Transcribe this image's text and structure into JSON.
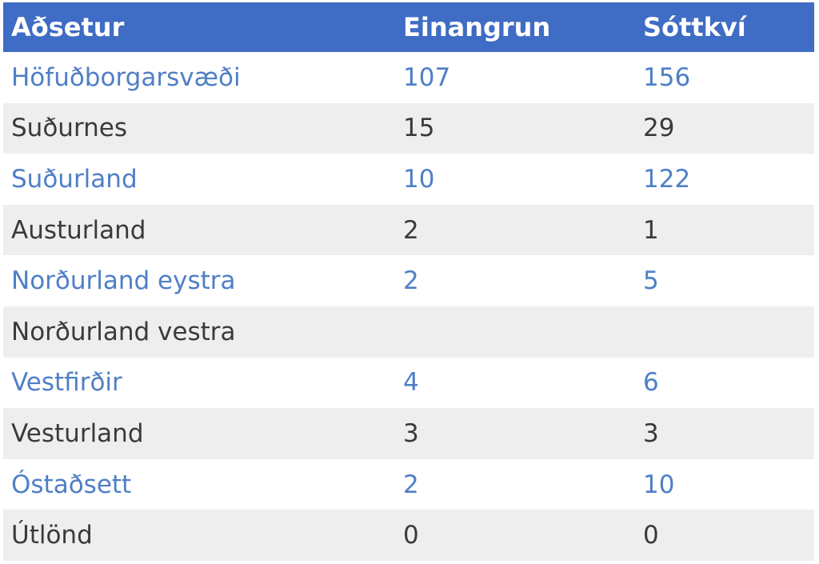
{
  "table": {
    "headers": [
      "Aðsetur",
      "Einangrun",
      "Sóttkví"
    ],
    "rows": [
      [
        "Höfuðborgarsvæði",
        "107",
        "156"
      ],
      [
        "Suðurnes",
        "15",
        "29"
      ],
      [
        "Suðurland",
        "10",
        "122"
      ],
      [
        "Austurland",
        "2",
        "1"
      ],
      [
        "Norðurland eystra",
        "2",
        "5"
      ],
      [
        "Norðurland vestra",
        "",
        ""
      ],
      [
        "Vestfirðir",
        "4",
        "6"
      ],
      [
        "Vesturland",
        "3",
        "3"
      ],
      [
        "Óstaðsett",
        "2",
        "10"
      ],
      [
        "Útlönd",
        "0",
        "0"
      ]
    ]
  },
  "colors": {
    "header_background": "#3f6cc4",
    "header_text": "#ffffff",
    "odd_row_text": "#4f7fc6",
    "even_row_text": "#3a3a3a",
    "even_row_background": "#eeeeee"
  }
}
